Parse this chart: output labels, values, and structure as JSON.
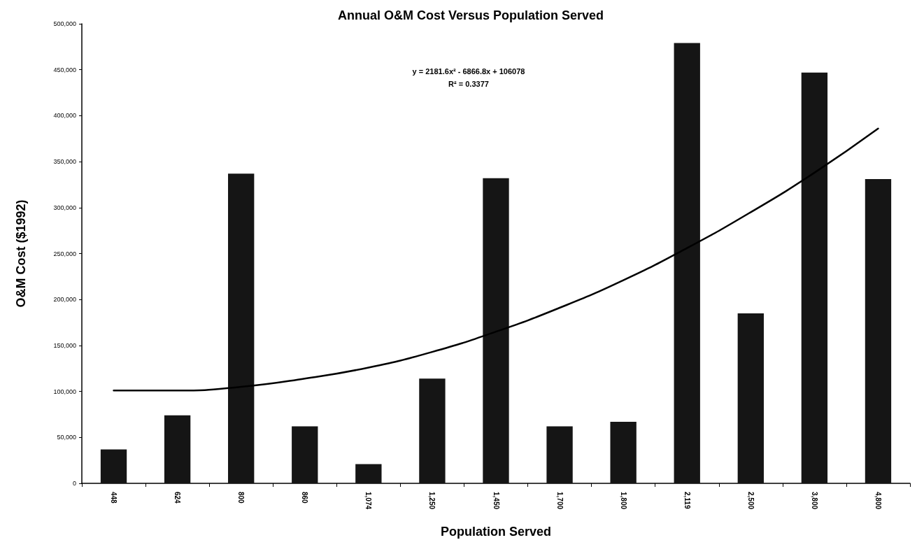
{
  "chart_data": {
    "type": "bar",
    "title": "Annual O&M Cost Versus Population Served",
    "xlabel": "Population Served",
    "ylabel": "O&M Cost ($1992)",
    "categories": [
      "448",
      "624",
      "800",
      "860",
      "1,074",
      "1,250",
      "1,450",
      "1,700",
      "1,800",
      "2,119",
      "2,500",
      "3,800",
      "4,800"
    ],
    "series": [
      {
        "color": "#151515",
        "values": [
          37000,
          74000,
          337000,
          62000,
          21000,
          114000,
          332000,
          62000,
          67000,
          479000,
          185000,
          447000,
          331000
        ]
      },
      {
        "type": "line",
        "color": "#000000",
        "marker": "none",
        "values": [
          101000,
          101000,
          105000,
          114000,
          126000,
          143000,
          165000,
          191000,
          221000,
          256000,
          295000,
          338000,
          386000
        ]
      }
    ],
    "ylim": [
      0,
      500000
    ],
    "yticks": [
      {
        "value": 0,
        "label": "0"
      },
      {
        "value": 50000,
        "label": "50,000"
      },
      {
        "value": 100000,
        "label": "100,000"
      },
      {
        "value": 150000,
        "label": "150,000"
      },
      {
        "value": 200000,
        "label": "200,000"
      },
      {
        "value": 250000,
        "label": "250,000"
      },
      {
        "value": 300000,
        "label": "300,000"
      },
      {
        "value": 350000,
        "label": "350,000"
      },
      {
        "value": 400000,
        "label": "400,000"
      },
      {
        "value": 450000,
        "label": "450,000"
      },
      {
        "value": 500000,
        "label": "500,000"
      }
    ],
    "annotations": [
      "y = 2181.6x² - 6866.8x + 106078",
      "R² = 0.3377"
    ],
    "grid": false
  }
}
